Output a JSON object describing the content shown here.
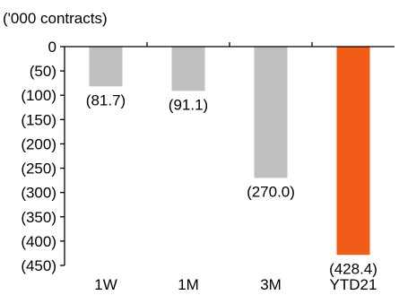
{
  "chart_data": {
    "type": "bar",
    "unit_label": "('000 contracts)",
    "categories": [
      "1W",
      "1M",
      "3M",
      "YTD21"
    ],
    "values": [
      -81.7,
      -91.1,
      -270.0,
      -428.4
    ],
    "data_labels": [
      "(81.7)",
      "(91.1)",
      "(270.0)",
      "(428.4)"
    ],
    "ylim": [
      -450,
      0
    ],
    "yticks": [
      0,
      -50,
      -100,
      -150,
      -200,
      -250,
      -300,
      -350,
      -400,
      -450
    ],
    "ytick_labels": [
      "0",
      "(50)",
      "(100)",
      "(150)",
      "(200)",
      "(250)",
      "(300)",
      "(350)",
      "(400)",
      "(450)"
    ],
    "bar_colors": [
      "#c0c0c0",
      "#c0c0c0",
      "#c0c0c0",
      "#f25c19"
    ],
    "grid": false,
    "legend": "none"
  }
}
